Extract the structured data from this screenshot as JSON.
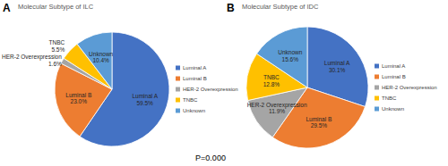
{
  "chart_data": [
    {
      "type": "pie",
      "panel_label": "A",
      "title": "Molecular Subtype of ILC",
      "categories": [
        "Luminal A",
        "Luminal B",
        "HER-2 Overexpression",
        "TNBC",
        "Unknown"
      ],
      "values": [
        59.5,
        23.0,
        1.6,
        5.5,
        10.4
      ],
      "value_labels": [
        "59.5%",
        "23.0%",
        "1.6%",
        "5.5%",
        "10.4%"
      ],
      "colors": [
        "#4472c4",
        "#ed7d31",
        "#a5a5a5",
        "#ffc000",
        "#5b9bd5"
      ],
      "data_labels": true,
      "legend": "right"
    },
    {
      "type": "pie",
      "panel_label": "B",
      "title": "Molecular Subtype of IDC",
      "categories": [
        "Luminal A",
        "Luminal B",
        "HER-2 Overexpression",
        "TNBC",
        "Unknown"
      ],
      "values": [
        30.1,
        29.5,
        11.9,
        12.8,
        15.6
      ],
      "value_labels": [
        "30.1%",
        "29.5%",
        "11.9%",
        "12.8%",
        "15.6%"
      ],
      "colors": [
        "#4472c4",
        "#ed7d31",
        "#a5a5a5",
        "#ffc000",
        "#5b9bd5"
      ],
      "data_labels": true,
      "legend": "right"
    }
  ],
  "annotation": "P=0.000"
}
